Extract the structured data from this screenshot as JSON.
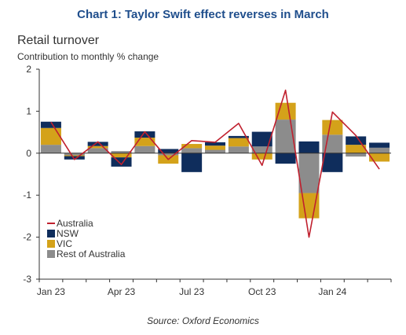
{
  "chart_data": {
    "type": "bar",
    "title": "Chart 1: Taylor Swift effect reverses in March",
    "subtitle": "Retail turnover",
    "ylabel": "Contribution to monthly % change",
    "source": "Source: Oxford Economics",
    "ylim": [
      -3,
      2
    ],
    "yticks": [
      "2",
      "1",
      "0",
      "-1",
      "-2",
      "-3"
    ],
    "ytick_values": [
      2,
      1,
      0,
      -1,
      -2,
      -3
    ],
    "xtick_labels": [
      {
        "index": 0,
        "label": "Jan 23"
      },
      {
        "index": 3,
        "label": "Apr 23"
      },
      {
        "index": 6,
        "label": "Jul 23"
      },
      {
        "index": 9,
        "label": "Oct 23"
      },
      {
        "index": 12,
        "label": "Jan 24"
      }
    ],
    "n_categories": 15,
    "stack_order": [
      "Rest of Australia",
      "VIC",
      "NSW"
    ],
    "series": [
      {
        "name": "NSW",
        "kind": "bar",
        "color": "#0f2d5c",
        "values": [
          0.15,
          -0.08,
          0.1,
          -0.22,
          0.15,
          0.1,
          -0.45,
          0.08,
          0.05,
          0.35,
          -0.25,
          0.28,
          -0.45,
          0.2,
          0.12
        ]
      },
      {
        "name": "VIC",
        "kind": "bar",
        "color": "#d4a21a",
        "values": [
          0.4,
          -0.02,
          0.05,
          -0.1,
          0.2,
          -0.2,
          0.1,
          0.1,
          0.2,
          -0.15,
          0.4,
          -0.6,
          0.35,
          0.2,
          -0.2
        ]
      },
      {
        "name": "Rest of Australia",
        "kind": "bar",
        "color": "#8c8c8c",
        "values": [
          0.2,
          -0.05,
          0.12,
          0.05,
          0.17,
          -0.05,
          0.12,
          0.08,
          0.16,
          0.16,
          0.8,
          -0.95,
          0.44,
          -0.08,
          0.13
        ]
      },
      {
        "name": "Australia",
        "kind": "line",
        "color": "#c0202e",
        "values": [
          0.74,
          -0.15,
          0.27,
          -0.27,
          0.51,
          -0.15,
          0.3,
          0.26,
          0.71,
          -0.29,
          1.5,
          -2.0,
          0.98,
          0.42,
          -0.38
        ]
      }
    ],
    "legend": {
      "position": "bottom-left",
      "entries": [
        {
          "label": "Australia",
          "kind": "line",
          "color": "#c0202e"
        },
        {
          "label": "NSW",
          "kind": "box",
          "color": "#0f2d5c"
        },
        {
          "label": "VIC",
          "kind": "box",
          "color": "#d4a21a"
        },
        {
          "label": "Rest of Australia",
          "kind": "box",
          "color": "#8c8c8c"
        }
      ]
    },
    "grid": false
  }
}
